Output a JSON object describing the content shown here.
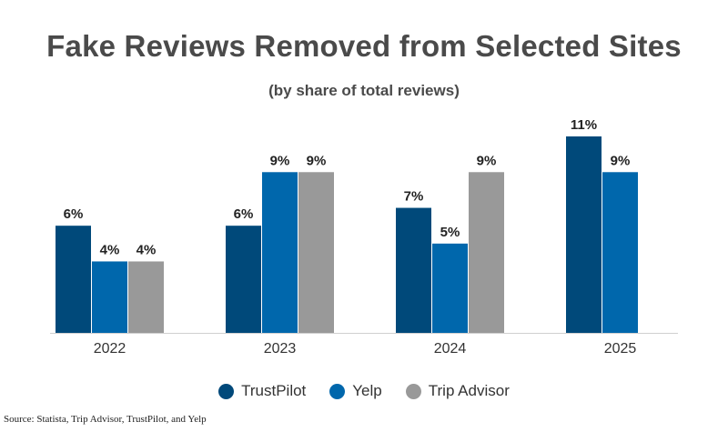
{
  "header": {
    "title": "Fake Reviews Removed from Selected Sites",
    "subtitle": "(by share of total reviews)"
  },
  "source_text": "Source: Statista, Trip Advisor, TrustPilot, and Yelp",
  "legend": [
    {
      "label": "TrustPilot",
      "color": "#00497a"
    },
    {
      "label": "Yelp",
      "color": "#0067ac"
    },
    {
      "label": "Trip Advisor",
      "color": "#999999"
    }
  ],
  "chart_data": {
    "type": "bar",
    "categories": [
      "2022",
      "2023",
      "2024",
      "2025"
    ],
    "series": [
      {
        "name": "TrustPilot",
        "color": "#00497a",
        "values": [
          6,
          6,
          7,
          11
        ],
        "labels": [
          "6%",
          "6%",
          "7%",
          "11%"
        ]
      },
      {
        "name": "Yelp",
        "color": "#0067ac",
        "values": [
          4,
          9,
          5,
          9
        ],
        "labels": [
          "4%",
          "9%",
          "5%",
          "9%"
        ]
      },
      {
        "name": "Trip Advisor",
        "color": "#999999",
        "values": [
          4,
          9,
          9,
          null
        ],
        "labels": [
          "4%",
          "9%",
          "9%",
          ""
        ]
      }
    ],
    "ylim": [
      0,
      11
    ],
    "grid": false,
    "legend_position": "bottom"
  }
}
